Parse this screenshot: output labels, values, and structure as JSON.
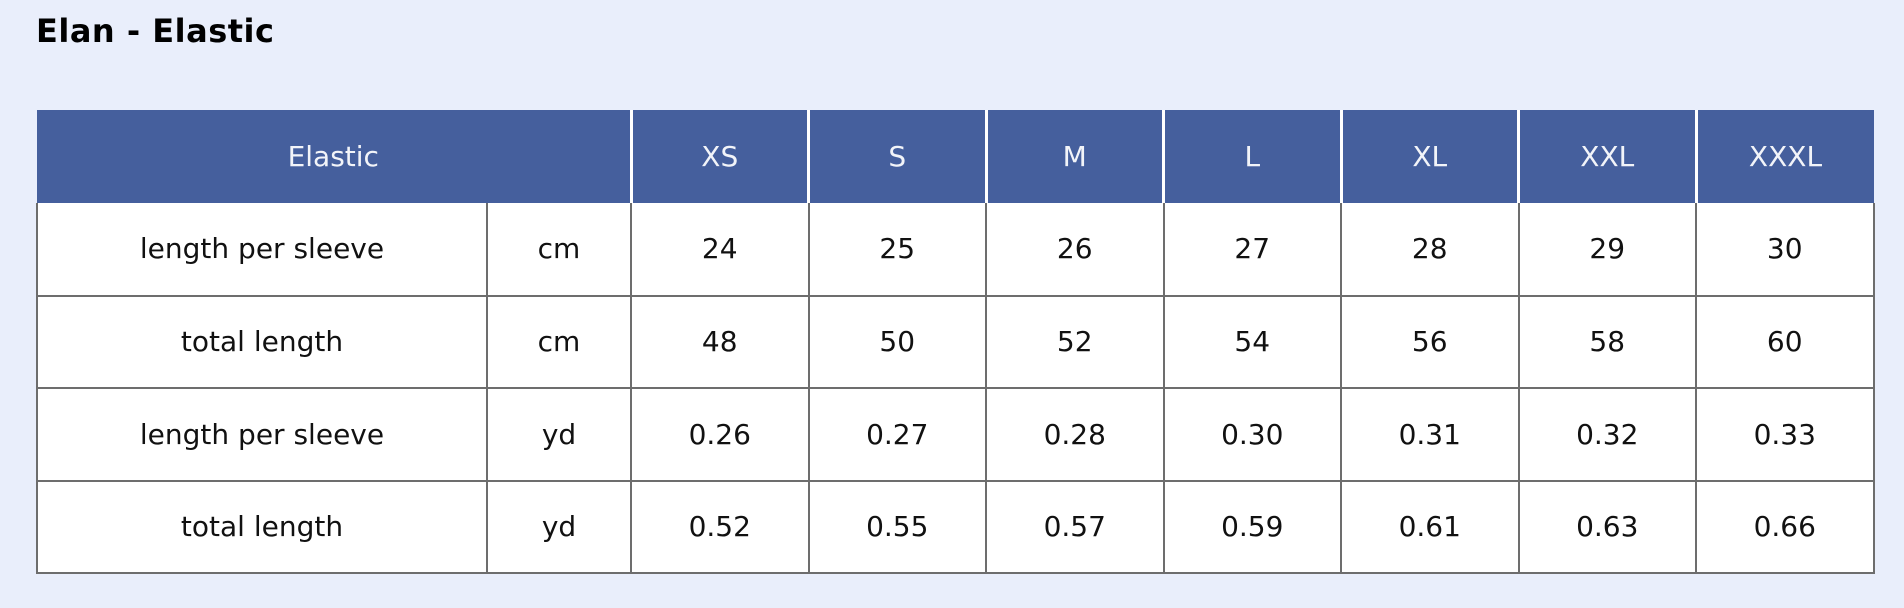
{
  "title": "Elan - Elastic",
  "colors": {
    "page_background": "#e9eefb",
    "header_background": "#455f9d",
    "header_text": "#f2f4f9",
    "body_cell_background": "#ffffff",
    "grid_border": "#6d6d6d",
    "body_text": "#111111",
    "title_text": "#000000"
  },
  "table": {
    "header": {
      "group_label": "Elastic",
      "sizes": [
        "XS",
        "S",
        "M",
        "L",
        "XL",
        "XXL",
        "XXXL"
      ]
    },
    "rows": [
      {
        "label": "length per sleeve",
        "unit": "cm",
        "values": [
          "24",
          "25",
          "26",
          "27",
          "28",
          "29",
          "30"
        ]
      },
      {
        "label": "total length",
        "unit": "cm",
        "values": [
          "48",
          "50",
          "52",
          "54",
          "56",
          "58",
          "60"
        ]
      },
      {
        "label": "length per sleeve",
        "unit": "yd",
        "values": [
          "0.26",
          "0.27",
          "0.28",
          "0.30",
          "0.31",
          "0.32",
          "0.33"
        ]
      },
      {
        "label": "total length",
        "unit": "yd",
        "values": [
          "0.52",
          "0.55",
          "0.57",
          "0.59",
          "0.61",
          "0.63",
          "0.66"
        ]
      }
    ]
  }
}
